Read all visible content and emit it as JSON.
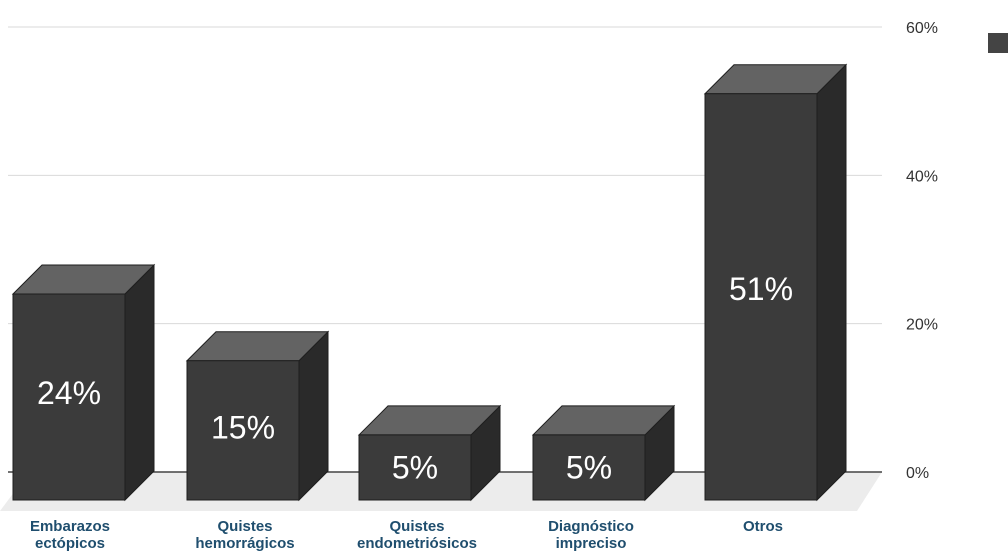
{
  "chart_data": {
    "type": "bar",
    "style": "3d-column",
    "categories": [
      [
        "Embarazos",
        "ectópicos"
      ],
      [
        "Quistes",
        "hemorrágicos"
      ],
      [
        "Quistes",
        "endometriósicos"
      ],
      [
        "Diagnóstico",
        "impreciso"
      ],
      [
        "Otros"
      ]
    ],
    "values": [
      24,
      15,
      5,
      5,
      51
    ],
    "value_labels": [
      "24%",
      "15%",
      "5%",
      "5%",
      "51%"
    ],
    "ylim": [
      0,
      60
    ],
    "y_ticks": [
      0,
      20,
      40,
      60
    ],
    "y_tick_labels": [
      "0%",
      "20%",
      "40%",
      "60%"
    ],
    "y_axis_position": "right",
    "grid": true,
    "legend": {
      "placement": "top-right",
      "entries": [
        ""
      ]
    },
    "colors": {
      "bar_front": "#3b3b3b",
      "bar_top": "#636363",
      "bar_side": "#2a2a2a",
      "bar_edge": "#1e1e1e",
      "grid": "#d9d9d9",
      "floor": "#ececec",
      "category_text": "#1f4e6e",
      "tick_text": "#333333",
      "legend_swatch": "#444444"
    }
  }
}
